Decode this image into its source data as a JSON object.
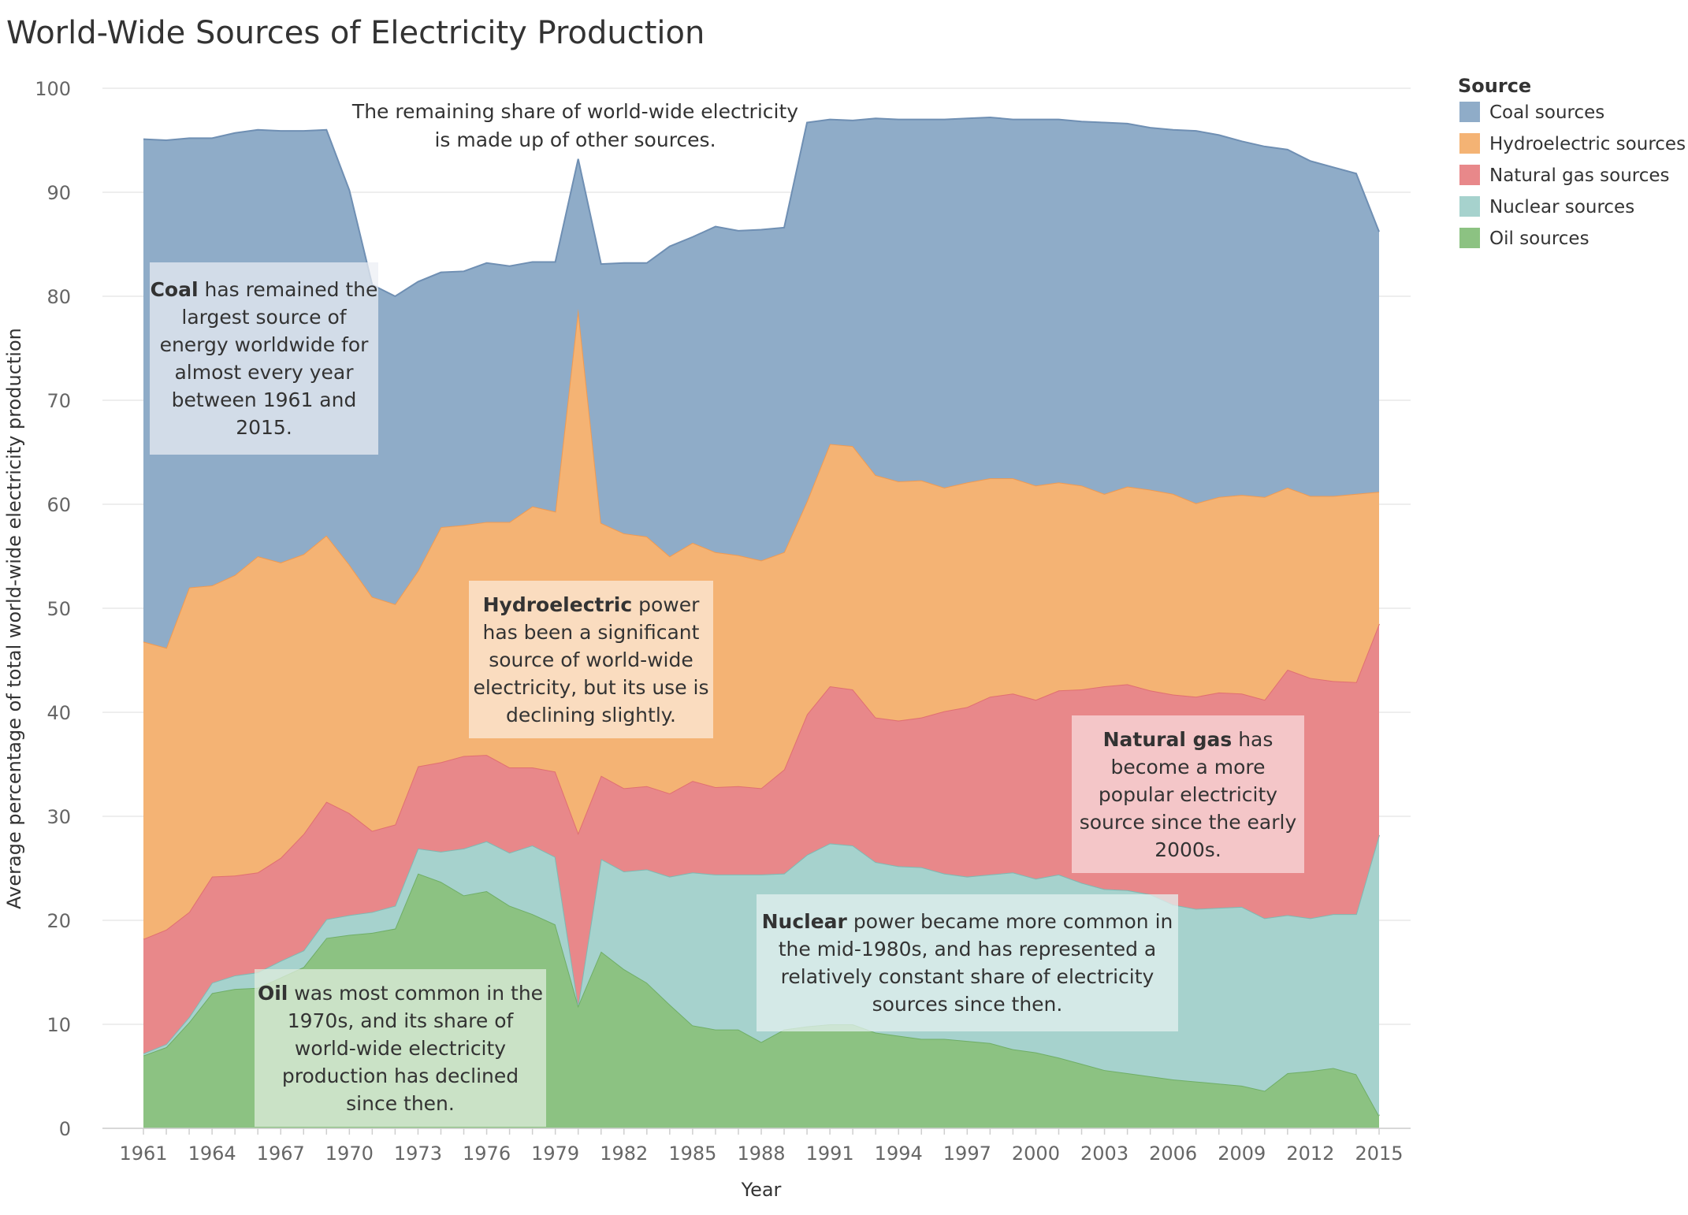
{
  "chart_data": {
    "type": "area",
    "stacked": true,
    "title": "World-Wide Sources of Electricity Production",
    "xlabel": "Year",
    "ylabel": "Average percentage of total world-wide electricity production",
    "ylim": [
      0,
      100
    ],
    "yticks": [
      0,
      10,
      20,
      30,
      40,
      50,
      60,
      70,
      80,
      90,
      100
    ],
    "xticks": [
      1961,
      1964,
      1967,
      1970,
      1973,
      1976,
      1979,
      1982,
      1985,
      1988,
      1991,
      1994,
      1997,
      2000,
      2003,
      2006,
      2009,
      2012,
      2015
    ],
    "grid": true,
    "legend_position": "top-right",
    "legend_title": "Source",
    "x": [
      1961,
      1962,
      1963,
      1964,
      1965,
      1966,
      1967,
      1968,
      1969,
      1970,
      1971,
      1972,
      1973,
      1974,
      1975,
      1976,
      1977,
      1978,
      1979,
      1980,
      1981,
      1982,
      1983,
      1984,
      1985,
      1986,
      1987,
      1988,
      1989,
      1990,
      1991,
      1992,
      1993,
      1994,
      1995,
      1996,
      1997,
      1998,
      1999,
      2000,
      2001,
      2002,
      2003,
      2004,
      2005,
      2006,
      2007,
      2008,
      2009,
      2010,
      2011,
      2012,
      2013,
      2014,
      2015
    ],
    "series": [
      {
        "name": "Oil sources",
        "color": "#8cc282",
        "values": [
          7.0,
          7.8,
          10.2,
          13.0,
          13.4,
          13.5,
          14.5,
          15.5,
          18.3,
          18.6,
          18.8,
          19.2,
          24.5,
          23.7,
          22.4,
          22.8,
          21.4,
          20.6,
          19.6,
          11.8,
          17.0,
          15.3,
          14.0,
          11.9,
          9.9,
          9.5,
          9.5,
          8.3,
          9.5,
          9.8,
          10.0,
          10.0,
          9.2,
          8.9,
          8.6,
          8.6,
          8.4,
          8.2,
          7.6,
          7.3,
          6.8,
          6.2,
          5.6,
          5.3,
          5.0,
          4.7,
          4.5,
          4.3,
          4.1,
          3.6,
          5.3,
          5.5,
          5.8,
          5.2,
          1.2
        ]
      },
      {
        "name": "Nuclear sources",
        "color": "#a6d2cd",
        "values": [
          0.2,
          0.3,
          0.5,
          1.0,
          1.3,
          1.5,
          1.6,
          1.6,
          1.8,
          1.9,
          2.0,
          2.2,
          2.4,
          2.9,
          4.5,
          4.8,
          5.1,
          6.6,
          6.5,
          0.1,
          8.9,
          9.4,
          10.9,
          12.3,
          14.7,
          14.9,
          14.9,
          16.1,
          15.0,
          16.5,
          17.4,
          17.2,
          16.4,
          16.3,
          16.5,
          15.9,
          15.8,
          16.2,
          17.0,
          16.7,
          17.6,
          17.4,
          17.4,
          17.6,
          17.5,
          16.8,
          16.6,
          16.9,
          17.2,
          16.6,
          15.2,
          14.7,
          14.8,
          15.4,
          27.0
        ]
      },
      {
        "name": "Natural gas sources",
        "color": "#e8888a",
        "values": [
          11.0,
          11.0,
          10.1,
          10.2,
          9.6,
          9.6,
          9.9,
          11.2,
          11.3,
          9.8,
          7.8,
          7.8,
          7.9,
          8.6,
          8.9,
          8.3,
          8.2,
          7.5,
          8.2,
          16.5,
          8.0,
          8.0,
          8.0,
          8.0,
          8.8,
          8.4,
          8.5,
          8.3,
          10.0,
          13.5,
          15.1,
          15.0,
          13.9,
          14.0,
          14.4,
          15.6,
          16.3,
          17.1,
          17.2,
          17.2,
          17.7,
          18.6,
          19.5,
          19.8,
          19.6,
          20.2,
          20.4,
          20.7,
          20.5,
          21.0,
          23.6,
          23.1,
          22.4,
          22.3,
          20.3
        ]
      },
      {
        "name": "Hydroelectric sources",
        "color": "#f4b374",
        "values": [
          28.6,
          27.1,
          31.2,
          28.0,
          28.9,
          30.4,
          28.4,
          26.9,
          25.6,
          23.9,
          22.5,
          21.2,
          18.8,
          22.6,
          22.2,
          22.4,
          23.6,
          25.1,
          25.0,
          50.4,
          24.3,
          24.5,
          24.0,
          22.8,
          22.9,
          22.6,
          22.2,
          21.9,
          20.9,
          20.5,
          23.3,
          23.4,
          23.3,
          23.0,
          22.8,
          21.5,
          21.6,
          21.0,
          20.7,
          20.6,
          20.0,
          19.6,
          18.5,
          19.0,
          19.3,
          19.3,
          18.6,
          18.8,
          19.1,
          19.5,
          17.5,
          17.5,
          17.8,
          18.1,
          12.7
        ]
      },
      {
        "name": "Coal sources",
        "color": "#8facc8",
        "values": [
          48.3,
          48.8,
          43.2,
          43.0,
          42.5,
          41.0,
          41.5,
          40.7,
          39.0,
          36.0,
          30.0,
          29.6,
          27.8,
          24.5,
          24.4,
          24.9,
          24.6,
          23.5,
          24.0,
          14.4,
          24.9,
          26.0,
          26.3,
          29.8,
          29.4,
          31.3,
          31.2,
          31.8,
          31.2,
          36.4,
          31.2,
          31.3,
          34.3,
          34.8,
          34.7,
          35.4,
          35.0,
          34.7,
          34.5,
          35.2,
          34.9,
          35.0,
          35.7,
          34.9,
          34.8,
          35.0,
          35.8,
          34.8,
          34.0,
          33.7,
          32.5,
          32.2,
          31.6,
          30.8,
          25.0
        ]
      }
    ],
    "annotations": {
      "remaining": "The remaining share of world-wide electricity is made up of other sources.",
      "coal": {
        "bold": "Coal",
        "text": " has remained the largest source of energy worldwide for almost every year between 1961 and 2015."
      },
      "hydro": {
        "bold": "Hydroelectric",
        "text": " power has been a significant source of world-wide electricity, but its use is declining slightly."
      },
      "gas": {
        "bold": "Natural gas",
        "text": " has become a more popular electricity source since the early 2000s."
      },
      "nuclear": {
        "bold": "Nuclear",
        "text": " power became more common in the mid-1980s, and has represented a relatively constant share of electricity sources since then."
      },
      "oil": {
        "bold": "Oil",
        "text": " was most common in the 1970s, and its share of world-wide electricity production has declined since then."
      }
    }
  }
}
